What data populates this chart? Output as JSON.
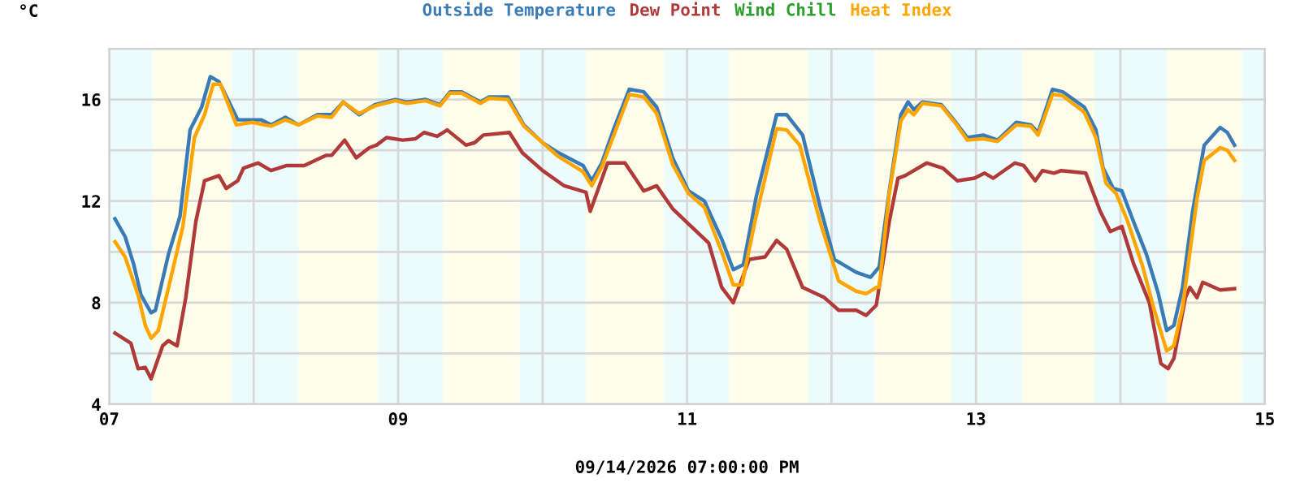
{
  "chart_data": {
    "type": "line",
    "ylabel": "°C",
    "xlabel": "09/14/2026 07:00:00 PM",
    "xlim": [
      7,
      15
    ],
    "xticks": [
      {
        "value": 7,
        "label": "07"
      },
      {
        "value": 8,
        "label": null
      },
      {
        "value": 9,
        "label": "09"
      },
      {
        "value": 10,
        "label": null
      },
      {
        "value": 11,
        "label": "11"
      },
      {
        "value": 12,
        "label": null
      },
      {
        "value": 13,
        "label": "13"
      },
      {
        "value": 14,
        "label": null
      },
      {
        "value": 15,
        "label": "15"
      }
    ],
    "ylim": [
      4,
      18
    ],
    "yticks": [
      4,
      {
        "value": 6,
        "label": null
      },
      8,
      {
        "value": 10,
        "label": null
      },
      12,
      {
        "value": 14,
        "label": null
      },
      16,
      {
        "value": 18,
        "label": null
      }
    ],
    "grid": true,
    "legend": "top",
    "line_style": "solid",
    "marker": "none",
    "bands": [
      {
        "axis": "x",
        "from": 7,
        "to": 7.3,
        "color": "#ecfcfc"
      },
      {
        "axis": "x",
        "from": 7.3,
        "to": 7.85,
        "color": "#fdfdea"
      },
      {
        "axis": "x",
        "from": 7.85,
        "to": 8.31,
        "color": "#ecfcfc"
      },
      {
        "axis": "x",
        "from": 8.31,
        "to": 8.86,
        "color": "#fdfdea"
      },
      {
        "axis": "x",
        "from": 8.86,
        "to": 9.31,
        "color": "#ecfcfc"
      },
      {
        "axis": "x",
        "from": 9.31,
        "to": 9.84,
        "color": "#fdfdea"
      },
      {
        "axis": "x",
        "from": 9.84,
        "to": 10.3,
        "color": "#ecfcfc"
      },
      {
        "axis": "x",
        "from": 10.3,
        "to": 10.84,
        "color": "#fdfdea"
      },
      {
        "axis": "x",
        "from": 10.84,
        "to": 11.29,
        "color": "#ecfcfc"
      },
      {
        "axis": "x",
        "from": 11.29,
        "to": 11.84,
        "color": "#fdfdea"
      },
      {
        "axis": "x",
        "from": 11.84,
        "to": 12.3,
        "color": "#ecfcfc"
      },
      {
        "axis": "x",
        "from": 12.3,
        "to": 12.83,
        "color": "#fdfdea"
      },
      {
        "axis": "x",
        "from": 12.83,
        "to": 13.32,
        "color": "#ecfcfc"
      },
      {
        "axis": "x",
        "from": 13.32,
        "to": 13.82,
        "color": "#fdfdea"
      },
      {
        "axis": "x",
        "from": 13.82,
        "to": 14.32,
        "color": "#ecfcfc"
      },
      {
        "axis": "x",
        "from": 14.32,
        "to": 14.84,
        "color": "#fdfdea"
      },
      {
        "axis": "x",
        "from": 14.84,
        "to": 15,
        "color": "#ecfcfc"
      }
    ],
    "series": [
      {
        "name": "Outside Temperature",
        "color": "#3b7bb5",
        "x": [
          7.04,
          7.11,
          7.17,
          7.22,
          7.29,
          7.32,
          7.41,
          7.49,
          7.56,
          7.64,
          7.7,
          7.76,
          7.83,
          7.89,
          7.99,
          8.05,
          8.12,
          8.22,
          8.31,
          8.44,
          8.54,
          8.62,
          8.73,
          8.84,
          8.98,
          9.06,
          9.19,
          9.29,
          9.36,
          9.44,
          9.57,
          9.63,
          9.76,
          9.87,
          10.0,
          10.11,
          10.28,
          10.34,
          10.41,
          10.49,
          10.6,
          10.7,
          10.79,
          10.9,
          11.01,
          11.12,
          11.24,
          11.32,
          11.39,
          11.48,
          11.62,
          11.69,
          11.8,
          11.92,
          12.02,
          12.17,
          12.27,
          12.33,
          12.4,
          12.48,
          12.53,
          12.57,
          12.63,
          12.76,
          12.86,
          12.94,
          13.05,
          13.15,
          13.28,
          13.38,
          13.43,
          13.53,
          13.6,
          13.75,
          13.83,
          13.88,
          13.95,
          14.01,
          14.09,
          14.18,
          14.26,
          14.32,
          14.37,
          14.43,
          14.5,
          14.58,
          14.69,
          14.74,
          14.79
        ],
        "values": [
          11.3,
          10.6,
          9.5,
          8.3,
          7.6,
          7.7,
          9.9,
          11.4,
          14.8,
          15.7,
          16.9,
          16.7,
          15.9,
          15.2,
          15.2,
          15.2,
          15.0,
          15.3,
          15.0,
          15.4,
          15.4,
          15.9,
          15.4,
          15.8,
          16.0,
          15.9,
          16.0,
          15.8,
          16.3,
          16.3,
          15.9,
          16.1,
          16.1,
          15.0,
          14.3,
          13.9,
          13.4,
          12.8,
          13.5,
          14.8,
          16.4,
          16.3,
          15.7,
          13.7,
          12.4,
          12.0,
          10.5,
          9.3,
          9.5,
          12.2,
          15.4,
          15.4,
          14.6,
          11.8,
          9.7,
          9.2,
          9.0,
          9.4,
          12.4,
          15.4,
          15.9,
          15.6,
          15.9,
          15.8,
          15.1,
          14.5,
          14.6,
          14.4,
          15.1,
          15.0,
          14.7,
          16.4,
          16.3,
          15.7,
          14.8,
          13.3,
          12.5,
          12.4,
          11.2,
          9.9,
          8.4,
          6.9,
          7.1,
          8.6,
          11.6,
          14.2,
          14.9,
          14.7,
          14.2
        ]
      },
      {
        "name": "Dew Point",
        "color": "#b03a3a",
        "x": [
          7.04,
          7.15,
          7.2,
          7.25,
          7.29,
          7.37,
          7.41,
          7.47,
          7.53,
          7.6,
          7.66,
          7.76,
          7.81,
          7.89,
          7.93,
          8.03,
          8.12,
          8.23,
          8.35,
          8.5,
          8.54,
          8.63,
          8.71,
          8.8,
          8.85,
          8.92,
          9.03,
          9.12,
          9.18,
          9.27,
          9.34,
          9.47,
          9.53,
          9.59,
          9.77,
          9.86,
          10.0,
          10.15,
          10.3,
          10.33,
          10.45,
          10.57,
          10.7,
          10.79,
          10.9,
          11.01,
          11.15,
          11.24,
          11.32,
          11.43,
          11.54,
          11.62,
          11.69,
          11.8,
          11.95,
          12.05,
          12.17,
          12.24,
          12.31,
          12.4,
          12.46,
          12.51,
          12.66,
          12.77,
          12.87,
          12.99,
          13.06,
          13.12,
          13.27,
          13.33,
          13.41,
          13.46,
          13.54,
          13.59,
          13.76,
          13.86,
          13.93,
          14.01,
          14.09,
          14.2,
          14.28,
          14.33,
          14.37,
          14.45,
          14.48,
          14.53,
          14.57,
          14.69,
          14.79
        ],
        "values": [
          6.8,
          6.4,
          5.4,
          5.45,
          5.0,
          6.3,
          6.5,
          6.3,
          8.2,
          11.2,
          12.8,
          13.0,
          12.5,
          12.8,
          13.3,
          13.5,
          13.2,
          13.4,
          13.4,
          13.8,
          13.8,
          14.4,
          13.7,
          14.1,
          14.2,
          14.5,
          14.4,
          14.45,
          14.7,
          14.55,
          14.8,
          14.2,
          14.3,
          14.6,
          14.7,
          13.9,
          13.2,
          12.6,
          12.35,
          11.6,
          13.5,
          13.5,
          12.4,
          12.6,
          11.7,
          11.1,
          10.35,
          8.6,
          8.0,
          9.7,
          9.8,
          10.45,
          10.1,
          8.6,
          8.2,
          7.7,
          7.7,
          7.5,
          7.9,
          11.2,
          12.9,
          13.0,
          13.5,
          13.3,
          12.8,
          12.9,
          13.1,
          12.9,
          13.5,
          13.4,
          12.8,
          13.2,
          13.1,
          13.2,
          13.1,
          11.6,
          10.8,
          11.0,
          9.55,
          8.0,
          5.6,
          5.4,
          5.8,
          8.2,
          8.6,
          8.2,
          8.8,
          8.5,
          8.55
        ]
      },
      {
        "name": "Wind Chill",
        "color": "#2ca02c"
      },
      {
        "name": "Heat Index",
        "color": "#ffa500",
        "x": [
          7.04,
          7.11,
          7.2,
          7.25,
          7.29,
          7.34,
          7.44,
          7.51,
          7.59,
          7.66,
          7.72,
          7.77,
          7.88,
          7.99,
          8.12,
          8.22,
          8.31,
          8.44,
          8.54,
          8.62,
          8.73,
          8.84,
          8.98,
          9.06,
          9.19,
          9.29,
          9.36,
          9.44,
          9.57,
          9.63,
          9.76,
          9.87,
          10.11,
          10.28,
          10.34,
          10.41,
          10.6,
          10.7,
          10.79,
          10.9,
          11.01,
          11.12,
          11.24,
          11.32,
          11.38,
          11.47,
          11.62,
          11.69,
          11.78,
          11.92,
          12.05,
          12.17,
          12.24,
          12.31,
          12.33,
          12.4,
          12.48,
          12.53,
          12.57,
          12.63,
          12.76,
          12.86,
          12.94,
          13.05,
          13.15,
          13.28,
          13.38,
          13.43,
          13.53,
          13.6,
          13.75,
          13.83,
          13.9,
          13.97,
          14.05,
          14.15,
          14.23,
          14.32,
          14.37,
          14.43,
          14.53,
          14.58,
          14.69,
          14.74,
          14.79
        ],
        "values": [
          10.4,
          9.8,
          8.3,
          7.1,
          6.6,
          6.9,
          9.3,
          11.0,
          14.5,
          15.4,
          16.6,
          16.6,
          15.0,
          15.1,
          14.95,
          15.2,
          15.0,
          15.35,
          15.3,
          15.9,
          15.45,
          15.75,
          15.95,
          15.85,
          15.95,
          15.75,
          16.25,
          16.25,
          15.85,
          16.05,
          16.0,
          14.95,
          13.75,
          13.15,
          12.6,
          13.35,
          16.2,
          16.1,
          15.45,
          13.45,
          12.3,
          11.75,
          10.0,
          8.7,
          8.7,
          11.2,
          14.85,
          14.8,
          14.2,
          11.2,
          8.85,
          8.45,
          8.35,
          8.6,
          8.6,
          12.3,
          15.15,
          15.6,
          15.4,
          15.85,
          15.75,
          15.05,
          14.4,
          14.45,
          14.35,
          15.0,
          14.95,
          14.6,
          16.2,
          16.15,
          15.5,
          14.5,
          12.7,
          12.3,
          11.2,
          9.5,
          7.8,
          6.1,
          6.3,
          7.8,
          12.1,
          13.6,
          14.1,
          14.0,
          13.6
        ]
      }
    ]
  }
}
